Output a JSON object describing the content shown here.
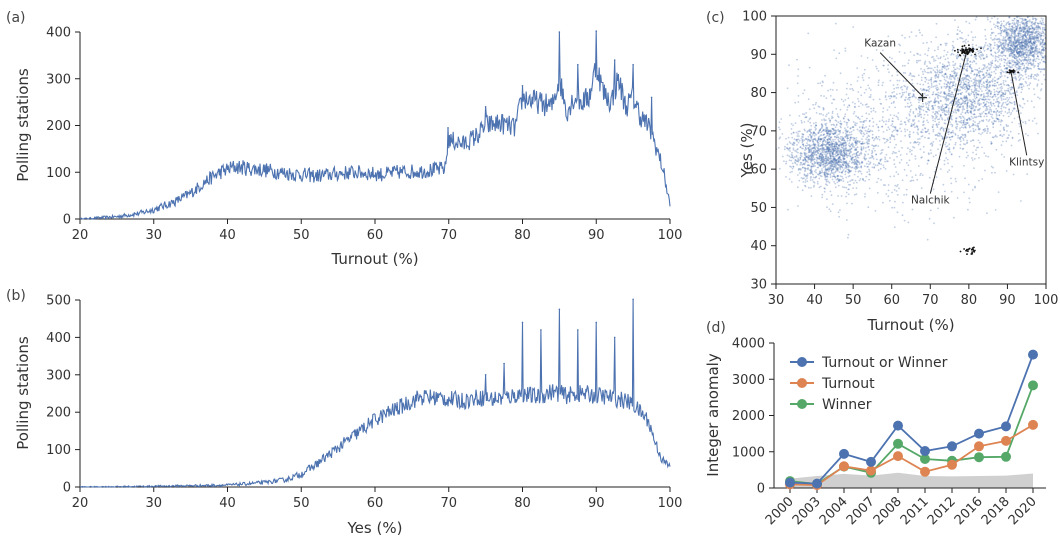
{
  "panels": {
    "a": "(a)",
    "b": "(b)",
    "c": "(c)",
    "d": "(d)"
  },
  "colors": {
    "blue": "#4c72b0",
    "orange": "#dd8452",
    "green": "#55a868",
    "band": "#c8c8c8"
  },
  "chart_data": [
    {
      "id": "a",
      "type": "line",
      "xlabel": "Turnout (%)",
      "ylabel": "Polling stations",
      "xlim": [
        20,
        100
      ],
      "ylim": [
        0,
        400
      ],
      "xticks": [
        20,
        30,
        40,
        50,
        60,
        70,
        80,
        90,
        100
      ],
      "yticks": [
        0,
        100,
        200,
        300,
        400
      ],
      "x": [
        20,
        25,
        28,
        30,
        33,
        35,
        37,
        39,
        41,
        43,
        45,
        48,
        50,
        52,
        55,
        57,
        59,
        61,
        63,
        66,
        68,
        69.5,
        70,
        72,
        74,
        75,
        77,
        79,
        80,
        82,
        84,
        85,
        86,
        87,
        88,
        89,
        90,
        91,
        92,
        93,
        94,
        95,
        96,
        97,
        98,
        99,
        100
      ],
      "values": [
        0,
        5,
        12,
        20,
        38,
        55,
        80,
        100,
        112,
        108,
        105,
        98,
        95,
        92,
        97,
        100,
        98,
        95,
        100,
        102,
        105,
        108,
        170,
        160,
        180,
        200,
        205,
        195,
        260,
        250,
        240,
        300,
        230,
        260,
        250,
        260,
        330,
        270,
        250,
        300,
        240,
        260,
        220,
        200,
        160,
        110,
        30
      ],
      "spikes": [
        {
          "x": 69.9,
          "y": 195
        },
        {
          "x": 70.3,
          "y": 180
        },
        {
          "x": 75,
          "y": 240
        },
        {
          "x": 80,
          "y": 285
        },
        {
          "x": 85,
          "y": 400
        },
        {
          "x": 87.5,
          "y": 330
        },
        {
          "x": 90,
          "y": 402
        },
        {
          "x": 92.5,
          "y": 340
        },
        {
          "x": 95,
          "y": 330
        },
        {
          "x": 97.5,
          "y": 260
        }
      ]
    },
    {
      "id": "b",
      "type": "line",
      "xlabel": "Yes (%)",
      "ylabel": "Polling stations",
      "xlim": [
        20,
        100
      ],
      "ylim": [
        0,
        500
      ],
      "xticks": [
        20,
        30,
        40,
        50,
        60,
        70,
        80,
        90,
        100
      ],
      "yticks": [
        0,
        100,
        200,
        300,
        400,
        500
      ],
      "x": [
        20,
        30,
        40,
        45,
        48,
        50,
        52,
        54,
        56,
        58,
        60,
        62,
        64,
        66,
        68,
        70,
        72,
        74,
        76,
        78,
        80,
        82,
        84,
        86,
        88,
        90,
        92,
        94,
        95,
        96,
        97,
        98,
        99,
        100
      ],
      "values": [
        0,
        2,
        5,
        12,
        20,
        35,
        60,
        90,
        120,
        150,
        180,
        200,
        220,
        240,
        240,
        235,
        230,
        240,
        235,
        240,
        250,
        240,
        255,
        245,
        250,
        245,
        240,
        230,
        220,
        200,
        180,
        120,
        70,
        55
      ],
      "spikes": [
        {
          "x": 80,
          "y": 440
        },
        {
          "x": 82.5,
          "y": 420
        },
        {
          "x": 85,
          "y": 475
        },
        {
          "x": 87.5,
          "y": 420
        },
        {
          "x": 90,
          "y": 440
        },
        {
          "x": 92.5,
          "y": 400
        },
        {
          "x": 95,
          "y": 502
        },
        {
          "x": 77.5,
          "y": 330
        },
        {
          "x": 75,
          "y": 300
        }
      ]
    },
    {
      "id": "c",
      "type": "scatter",
      "xlabel": "Turnout (%)",
      "ylabel": "Yes (%)",
      "xlim": [
        30,
        100
      ],
      "ylim": [
        30,
        100
      ],
      "xticks": [
        30,
        40,
        50,
        60,
        70,
        80,
        90,
        100
      ],
      "yticks": [
        30,
        40,
        50,
        60,
        70,
        80,
        90,
        100
      ],
      "clusters": [
        {
          "cx": 44,
          "cy": 64,
          "sx": 5,
          "sy": 4,
          "n": 1400
        },
        {
          "cx": 80,
          "cy": 80,
          "sx": 8,
          "sy": 7,
          "n": 1600
        },
        {
          "cx": 94,
          "cy": 93,
          "sx": 4,
          "sy": 4,
          "n": 1300
        },
        {
          "cx": 60,
          "cy": 70,
          "sx": 14,
          "sy": 10,
          "n": 900
        }
      ],
      "annotations": [
        {
          "label": "Kazan",
          "x": 68,
          "y": 79,
          "tx": 57,
          "ty": 92
        },
        {
          "label": "Nalchik",
          "x": 79.5,
          "y": 91,
          "tx": 70,
          "ty": 51
        },
        {
          "label": "Klintsy",
          "x": 91,
          "y": 85,
          "tx": 95,
          "ty": 61
        }
      ],
      "black_clusters": [
        {
          "cx": 79.5,
          "cy": 91,
          "n": 60,
          "s": 1.2
        },
        {
          "cx": 91,
          "cy": 85.5,
          "n": 20,
          "s": 0.6
        },
        {
          "cx": 80,
          "cy": 39,
          "n": 20,
          "s": 1.3
        }
      ],
      "marker": {
        "x": 68,
        "y": 78.8
      }
    },
    {
      "id": "d",
      "type": "line",
      "ylabel": "Integer anomaly",
      "ylim": [
        0,
        4000
      ],
      "yticks": [
        0,
        1000,
        2000,
        3000,
        4000
      ],
      "categories": [
        "2000",
        "2003",
        "2004",
        "2007",
        "2008",
        "2011",
        "2012",
        "2016",
        "2018",
        "2020"
      ],
      "series": [
        {
          "name": "Turnout or Winner",
          "color": "#4c72b0",
          "values": [
            150,
            120,
            940,
            720,
            1720,
            1020,
            1150,
            1500,
            1700,
            3680
          ]
        },
        {
          "name": "Turnout",
          "color": "#dd8452",
          "values": [
            100,
            80,
            600,
            480,
            880,
            450,
            640,
            1150,
            1300,
            1740
          ]
        },
        {
          "name": "Winner",
          "color": "#55a868",
          "values": [
            190,
            110,
            590,
            420,
            1220,
            800,
            750,
            850,
            860,
            2830
          ]
        }
      ],
      "band": [
        260,
        330,
        390,
        340,
        420,
        330,
        320,
        330,
        340,
        400
      ],
      "legend": "top-left"
    }
  ]
}
